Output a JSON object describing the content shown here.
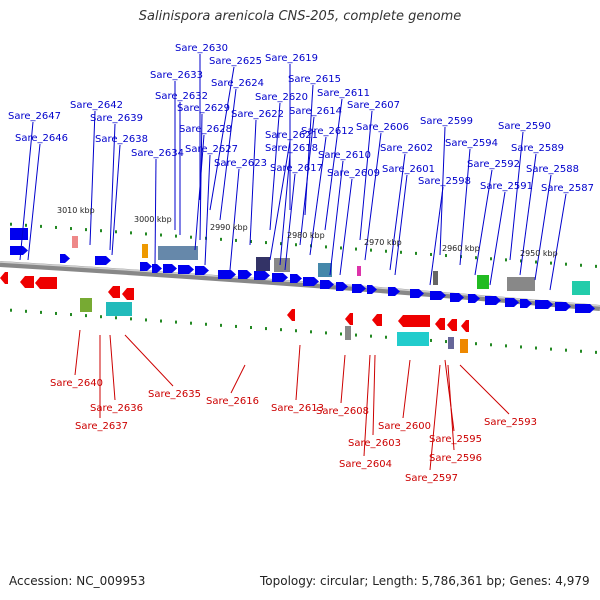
{
  "title": "Salinispora arenicola CNS-205, complete genome",
  "footer": {
    "accession": "Accession: NC_009953",
    "stats": "Topology: circular; Length: 5,786,361 bp; Genes: 4,979"
  },
  "colors": {
    "forward": "#0000ee",
    "reverse": "#ee0000",
    "forward_label": "#0000cc",
    "reverse_label": "#cc0000",
    "tick": "#228822",
    "backbone": "#888888"
  },
  "ruler_labels": [
    "3010 kbp",
    "3000 kbp",
    "2990 kbp",
    "2980 kbp",
    "2970 kbp",
    "2960 kbp",
    "2950 kbp"
  ],
  "forward_labels": [
    "Sare_2630",
    "Sare_2625",
    "Sare_2619",
    "Sare_2633",
    "Sare_2624",
    "Sare_2615",
    "Sare_2632",
    "Sare_2620",
    "Sare_2611",
    "Sare_2642",
    "Sare_2629",
    "Sare_2622",
    "Sare_2614",
    "Sare_2607",
    "Sare_2647",
    "Sare_2639",
    "Sare_2599",
    "Sare_2590",
    "Sare_2628",
    "Sare_2612",
    "Sare_2606",
    "Sare_2646",
    "Sare_2638",
    "Sare_2621",
    "Sare_2594",
    "Sare_2627",
    "Sare_2618",
    "Sare_2602",
    "Sare_2589",
    "Sare_2634",
    "Sare_2610",
    "Sare_2623",
    "Sare_2592",
    "Sare_2617",
    "Sare_2601",
    "Sare_2609",
    "Sare_2588",
    "Sare_2598",
    "Sare_2591",
    "Sare_2587"
  ],
  "reverse_labels": [
    "Sare_2640",
    "Sare_2635",
    "Sare_2616",
    "Sare_2613",
    "Sare_2636",
    "Sare_2608",
    "Sare_2600",
    "Sare_2593",
    "Sare_2637",
    "Sare_2595",
    "Sare_2603",
    "Sare_2596",
    "Sare_2604",
    "Sare_2597"
  ]
}
